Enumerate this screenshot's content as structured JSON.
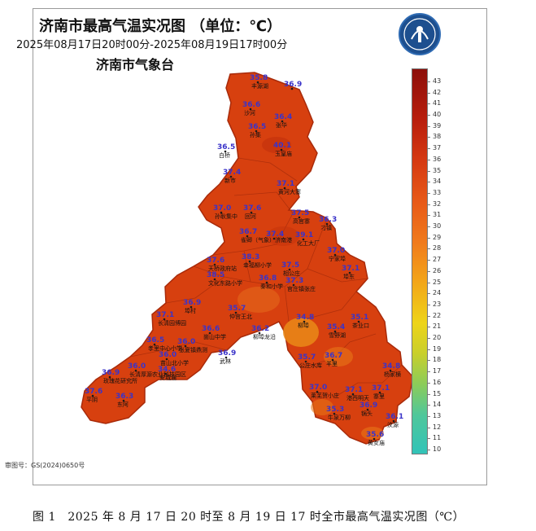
{
  "title": "济南市最高气温实况图 （单位：℃）",
  "period": "2025年08月17日20时00分-2025年08月19日17时00分",
  "issuer": "济南市气象台",
  "approval_number": "审图号：GS(2024)0650号",
  "caption": "图 1　2025 年 8 月 17 日 20 时至 8 月 19 日 17 时全市最高气温实况图（℃）",
  "legend": {
    "ticks": [
      "43",
      "42",
      "41",
      "40",
      "39",
      "38",
      "37",
      "36",
      "35",
      "34",
      "33",
      "32",
      "31",
      "30",
      "29",
      "28",
      "27",
      "26",
      "25",
      "24",
      "23",
      "22",
      "21",
      "20",
      "19",
      "18",
      "17",
      "16",
      "15",
      "14",
      "13",
      "12",
      "11",
      "10"
    ],
    "color_high": "#8d0f0a",
    "color_low": "#32c3b8"
  },
  "stations": [
    {
      "value": "35.8",
      "name": "丰源湖"
    },
    {
      "value": "36.9",
      "name": ""
    },
    {
      "value": "36.6",
      "name": "沙河"
    },
    {
      "value": "36.4",
      "name": "张华"
    },
    {
      "value": "36.5",
      "name": "孙集"
    },
    {
      "value": "36.5",
      "name": "白桥"
    },
    {
      "value": "40.1",
      "name": "玉皇庙"
    },
    {
      "value": "37.4",
      "name": "新市"
    },
    {
      "value": "37.1",
      "name": "黄河大寨"
    },
    {
      "value": "37.0",
      "name": "孙耿集中"
    },
    {
      "value": "37.6",
      "name": "回河"
    },
    {
      "value": "37.5",
      "name": "高官寨"
    },
    {
      "value": "36.3",
      "name": "刁镇"
    },
    {
      "value": "36.7",
      "name": "雀卿（气象）济南港"
    },
    {
      "value": "37.4",
      "name": ""
    },
    {
      "value": "39.1",
      "name": "化工大厂"
    },
    {
      "value": "37.0",
      "name": "宁家埠"
    },
    {
      "value": "37.6",
      "name": "天桥政府站"
    },
    {
      "value": "38.3",
      "name": "幸福柳小学"
    },
    {
      "value": "37.5",
      "name": "相公庄"
    },
    {
      "value": "37.1",
      "name": "埠东"
    },
    {
      "value": "38.5",
      "name": "文化东路小学"
    },
    {
      "value": "36.8",
      "name": "秦和小学"
    },
    {
      "value": "37.3",
      "name": "官庄镇张庄"
    },
    {
      "value": "36.9",
      "name": "埠村"
    },
    {
      "value": "37.1",
      "name": "长清园博园"
    },
    {
      "value": "35.7",
      "name": "仲宫王北"
    },
    {
      "value": "34.8",
      "name": "柳埠"
    },
    {
      "value": "35.1",
      "name": "茶业口"
    },
    {
      "value": "36.6",
      "name": "崮山中学"
    },
    {
      "value": "36.2",
      "name": "柳埠龙沿"
    },
    {
      "value": "35.4",
      "name": "雪野湖"
    },
    {
      "value": "36.5",
      "name": "孝里中心小学"
    },
    {
      "value": "36.0",
      "name": "张夏镇鼎测"
    },
    {
      "value": "36.0",
      "name": "苗山北小学"
    },
    {
      "value": "36.9",
      "name": "武林"
    },
    {
      "value": "36.0",
      "name": "长清厚源农业科技园区"
    },
    {
      "value": "34.6",
      "name": "安城庙"
    },
    {
      "value": "35.7",
      "name": "公庄水库"
    },
    {
      "value": "36.7",
      "name": "羊里"
    },
    {
      "value": "34.8",
      "name": "杨家横"
    },
    {
      "value": "36.9",
      "name": "玫瑰花研究所"
    },
    {
      "value": "36.3",
      "name": "东阿"
    },
    {
      "value": "37.6",
      "name": "平阴"
    },
    {
      "value": "37.0",
      "name": "莱芜贺小庄"
    },
    {
      "value": "37.1",
      "name": "港西明天"
    },
    {
      "value": "37.1",
      "name": "寨里"
    },
    {
      "value": "35.3",
      "name": "牛泉万柳"
    },
    {
      "value": "36.9",
      "name": "锅头"
    },
    {
      "value": "36.1",
      "name": "汶源"
    },
    {
      "value": "35.6",
      "name": "黄女庙"
    }
  ]
}
